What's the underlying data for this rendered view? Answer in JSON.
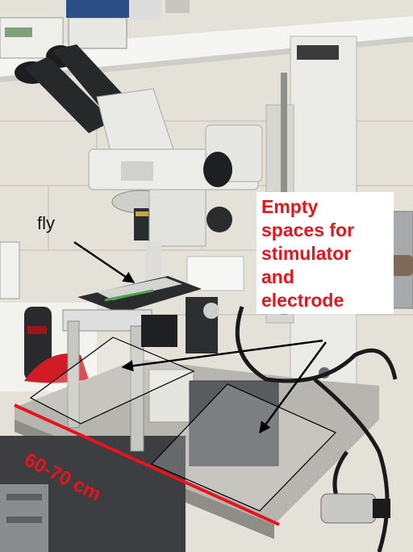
{
  "annotations": {
    "fly_label": "fly",
    "callout_lines": [
      "Empty",
      "spaces for",
      "stimulator",
      "and",
      "electrode"
    ],
    "dimension_label": "60-70 cm"
  },
  "colors": {
    "annotation_red": "#e8141b",
    "arrow_black": "#000000"
  }
}
